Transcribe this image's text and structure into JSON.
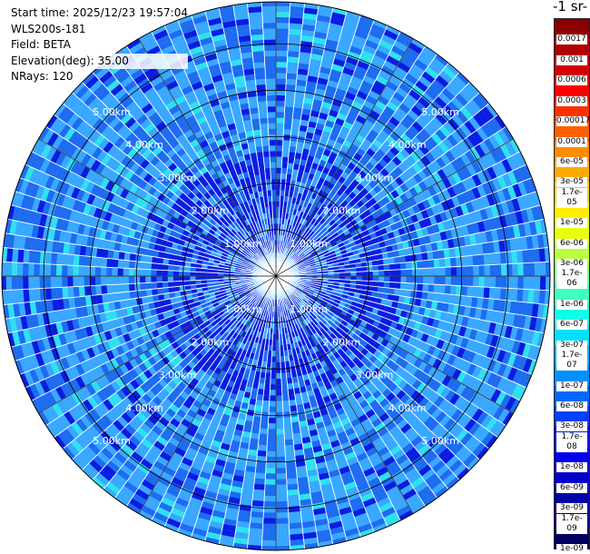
{
  "info": {
    "start_time": "Start time: 2025/12/23 19:57:04",
    "device": "WLS200s-181",
    "field": "Field: BETA",
    "elevation": "Elevation(deg): 35.00",
    "nrays": "NRays: 120"
  },
  "chart_data": {
    "type": "heatmap",
    "subtype": "polar-ppi",
    "unit_title": "-1 sr-",
    "rings": [
      "1.00km",
      "2.00km",
      "3.00km",
      "4.00km",
      "5.00km"
    ],
    "colorbar": {
      "labels_top_to_bottom": [
        "0.0017",
        "0.001",
        "0.0006",
        "0.0003",
        "0.00017",
        "0.0001",
        "6e-05",
        "3e-05",
        "1.7e-05",
        "1e-05",
        "6e-06",
        "3e-06",
        "1.7e-06",
        "1e-06",
        "6e-07",
        "3e-07",
        "1.7e-07",
        "1e-07",
        "6e-08",
        "3e-08",
        "1.7e-08",
        "1e-08",
        "6e-09",
        "3e-09",
        "1.7e-09",
        "1e-09"
      ],
      "colors_top_to_bottom": [
        "#8b0000",
        "#b00000",
        "#d40000",
        "#ff0000",
        "#ff3000",
        "#ff6000",
        "#ff8c00",
        "#ffaa00",
        "#ffcc00",
        "#ffee00",
        "#e8ff10",
        "#b8ff40",
        "#80ff80",
        "#40ffc0",
        "#10ffe8",
        "#00e0ff",
        "#00b4ff",
        "#0090ff",
        "#0068ff",
        "#0040ff",
        "#0018ff",
        "#0000f0",
        "#0000cc",
        "#0000a8",
        "#000080",
        "#000060"
      ]
    },
    "colors": {
      "background_dark_blue": "#0a1ce0",
      "mid_blue": "#1e6cf0",
      "light_blue": "#3aa8ff",
      "cyan": "#30e0f0",
      "ring_line": "#000000",
      "spoke_line": "#ffffff"
    },
    "grid": true
  }
}
